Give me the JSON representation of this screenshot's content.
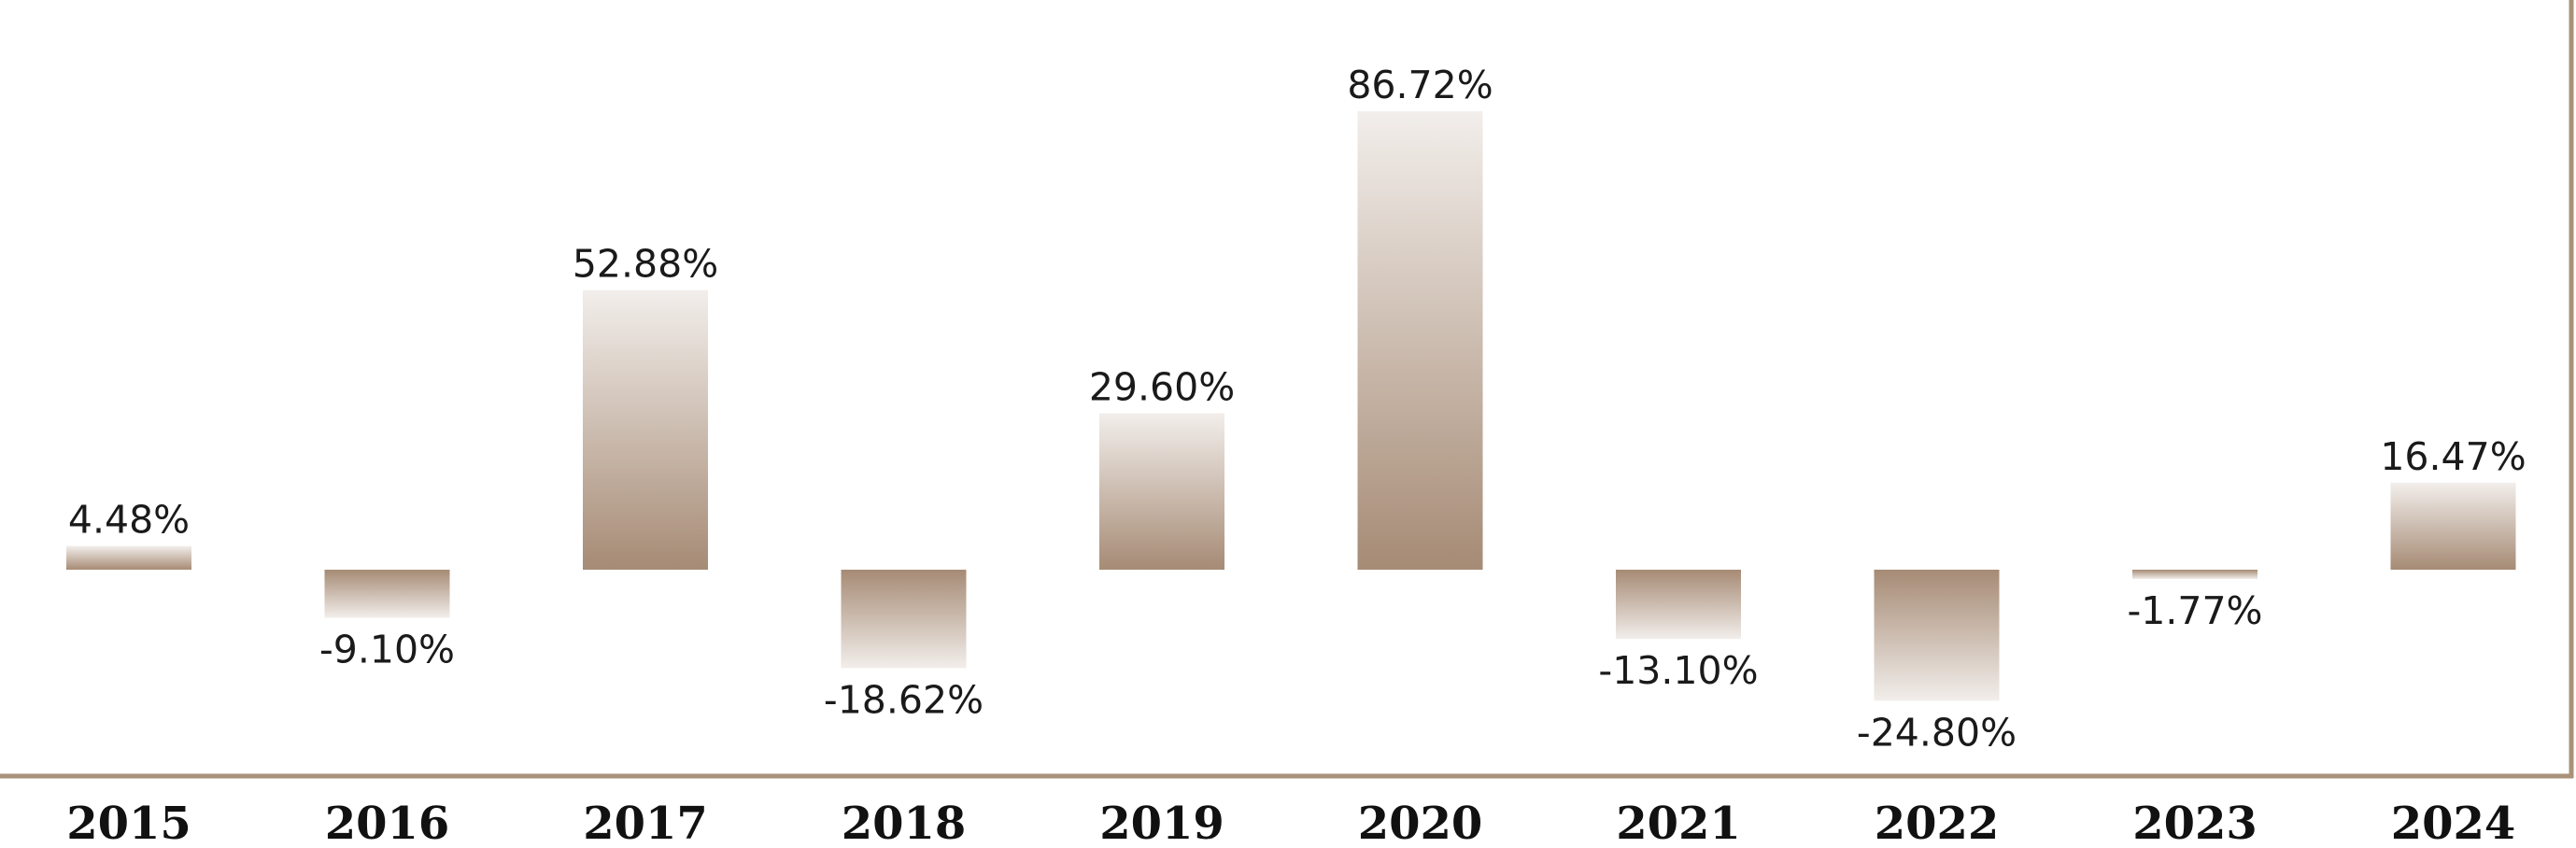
{
  "chart_data": {
    "type": "bar",
    "categories": [
      "2015",
      "2016",
      "2017",
      "2018",
      "2019",
      "2020",
      "2021",
      "2022",
      "2023",
      "2024"
    ],
    "values": [
      4.48,
      -9.1,
      52.88,
      -18.62,
      29.6,
      86.72,
      -13.1,
      -24.8,
      -1.77,
      16.47
    ],
    "value_labels": [
      "4.48%",
      "-9.10%",
      "52.88%",
      "-18.62%",
      "29.60%",
      "86.72%",
      "-13.10%",
      "-24.80%",
      "-1.77%",
      "16.47%"
    ],
    "title": "",
    "xlabel": "",
    "ylabel": "",
    "grid": false,
    "legend": "none",
    "colors": {
      "bar_dark": "#a68b75",
      "bar_light": "#f2eeeb",
      "frame": "#a89279"
    }
  }
}
